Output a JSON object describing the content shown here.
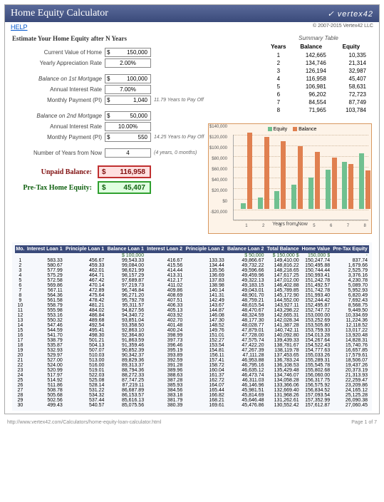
{
  "header": {
    "title": "Home Equity Calculator",
    "logo": "✓ vertex42",
    "help": "HELP",
    "copyright": "© 2007-2015 Vertex42 LLC"
  },
  "inputs": {
    "heading": "Estimate Your Home Equity after N Years",
    "current_value_lbl": "Current Value of Home",
    "current_value": "150,000",
    "appreciation_lbl": "Yearly Appreciation Rate",
    "appreciation": "2.00%",
    "m1_balance_lbl": "Balance on 1st Mortgage",
    "m1_balance": "100,000",
    "m1_rate_lbl": "Annual Interest Rate",
    "m1_rate": "7.00%",
    "m1_payment_lbl": "Monthly Payment (PI)",
    "m1_payment": "1,040",
    "m1_note": "11.79 Years to Pay Off",
    "m2_balance_lbl": "Balance on 2nd Mortgage",
    "m2_balance": "50,000",
    "m2_rate_lbl": "Annual Interest Rate",
    "m2_rate": "10.00%",
    "m2_payment_lbl": "Monthly Payment (PI)",
    "m2_payment": "550",
    "m2_note": "14.25 Years to Pay Off",
    "years_lbl": "Number of Years from Now",
    "years": "4",
    "years_note": "(4 years, 0 months)"
  },
  "results": {
    "unpaid_lbl": "Unpaid Balance:",
    "unpaid_val": "116,958",
    "equity_lbl": "Pre-Tax Home Equity:",
    "equity_val": "45,407"
  },
  "summary": {
    "title": "Summary Table",
    "cols": [
      "Years",
      "Balance",
      "Equity"
    ],
    "rows": [
      [
        "1",
        "142,665",
        "10,335"
      ],
      [
        "2",
        "134,746",
        "21,314"
      ],
      [
        "3",
        "126,194",
        "32,987"
      ],
      [
        "4",
        "116,958",
        "45,407"
      ],
      [
        "5",
        "106,981",
        "58,631"
      ],
      [
        "6",
        "96,202",
        "72,723"
      ],
      [
        "7",
        "84,554",
        "87,749"
      ],
      [
        "8",
        "71,965",
        "103,784"
      ]
    ]
  },
  "chart": {
    "legend_equity": "Equity",
    "legend_balance": "Balance",
    "equity_color": "#70c090",
    "balance_color": "#e08050",
    "bg": "#fdf3e8",
    "border": "#d89860",
    "ylabels": [
      "$140,000",
      "$120,000",
      "$100,000",
      "$80,000",
      "$60,000",
      "$40,000",
      "$20,000",
      "$0",
      "-$20,000"
    ],
    "ymax": 140000,
    "ymin": -20000,
    "xlabels": [
      "1",
      "2",
      "3",
      "4",
      "5",
      "6",
      "7",
      "8"
    ],
    "equity": [
      10335,
      21314,
      32987,
      45407,
      58631,
      72723,
      87749,
      103784
    ],
    "balance": [
      142665,
      134746,
      126194,
      116958,
      106981,
      96202,
      84554,
      71965
    ],
    "xtitle": "Years from Now"
  },
  "amort": {
    "headers": [
      "Mo.",
      "Interest Loan 1",
      "Principle Loan 1",
      "Balance Loan 1",
      "Interest Loan 2",
      "Principle Loan 2",
      "Balance Loan 2",
      "Total Balance",
      "Home Value",
      "Pre-Tax Equity"
    ],
    "init": [
      "",
      "",
      "",
      "$   100,000",
      "",
      "",
      "$   50,000",
      "$   150,000   $",
      "150,000   $",
      "-"
    ],
    "rows": [
      [
        "1",
        "583.33",
        "456.67",
        "99,543.33",
        "416.67",
        "133.33",
        "49,866.67",
        "149,410.00",
        "150,247.74",
        "837.74"
      ],
      [
        "2",
        "580.67",
        "459.33",
        "99,084.00",
        "415.56",
        "134.44",
        "49,732.22",
        "148,816.22",
        "150,495.88",
        "1,679.66"
      ],
      [
        "3",
        "577.99",
        "462.01",
        "98,621.99",
        "414.44",
        "135.56",
        "49,596.66",
        "148,218.65",
        "150,744.44",
        "2,525.79"
      ],
      [
        "4",
        "575.29",
        "464.71",
        "98,157.29",
        "413.31",
        "136.69",
        "49,459.96",
        "147,617.25",
        "150,993.41",
        "3,376.16"
      ],
      [
        "5",
        "572.58",
        "467.42",
        "97,689.87",
        "412.17",
        "137.83",
        "49,322.13",
        "147,012.00",
        "151,242.78",
        "4,230.78"
      ],
      [
        "6",
        "569.86",
        "470.14",
        "97,219.73",
        "411.02",
        "138.98",
        "49,183.15",
        "146,402.88",
        "151,492.57",
        "5,089.70"
      ],
      [
        "7",
        "567.11",
        "472.89",
        "96,746.84",
        "409.86",
        "140.14",
        "49,043.01",
        "145,789.85",
        "151,742.78",
        "5,952.93"
      ],
      [
        "8",
        "564.36",
        "475.64",
        "96,271.20",
        "408.69",
        "141.31",
        "48,901.70",
        "145,172.90",
        "151,993.40",
        "6,820.49"
      ],
      [
        "9",
        "561.58",
        "478.42",
        "95,792.78",
        "407.51",
        "142.49",
        "48,759.21",
        "144,552.00",
        "152,244.42",
        "7,692.43"
      ],
      [
        "10",
        "558.79",
        "481.21",
        "95,311.57",
        "406.33",
        "143.67",
        "48,615.54",
        "143,927.11",
        "152,495.87",
        "8,568.75"
      ],
      [
        "11",
        "555.98",
        "484.02",
        "94,827.56",
        "405.13",
        "144.87",
        "48,470.67",
        "143,298.22",
        "152,747.72",
        "9,449.50"
      ],
      [
        "12",
        "553.16",
        "486.84",
        "94,340.72",
        "403.92",
        "146.08",
        "48,324.59",
        "142,665.31",
        "153,000.00",
        "10,334.69"
      ],
      [
        "13",
        "550.32",
        "489.68",
        "93,851.04",
        "402.70",
        "147.30",
        "48,177.30",
        "142,028.34",
        "153,252.69",
        "11,224.36"
      ],
      [
        "14",
        "547.46",
        "492.54",
        "93,358.50",
        "401.48",
        "148.52",
        "48,028.77",
        "141,387.28",
        "153,505.80",
        "12,118.52"
      ],
      [
        "15",
        "544.59",
        "495.41",
        "92,863.10",
        "400.24",
        "149.76",
        "47,879.01",
        "140,742.11",
        "153,759.33",
        "13,017.22"
      ],
      [
        "16",
        "541.70",
        "498.30",
        "92,364.80",
        "398.99",
        "151.01",
        "47,728.00",
        "140,092.80",
        "154,013.28",
        "13,920.48"
      ],
      [
        "17",
        "538.79",
        "501.21",
        "91,863.59",
        "397.73",
        "152.27",
        "47,575.74",
        "139,439.33",
        "154,267.64",
        "14,828.31"
      ],
      [
        "18",
        "535.87",
        "504.13",
        "91,359.46",
        "396.46",
        "153.54",
        "47,422.20",
        "138,781.67",
        "154,522.43",
        "15,740.76"
      ],
      [
        "19",
        "532.93",
        "507.07",
        "90,852.39",
        "395.19",
        "154.81",
        "47,267.39",
        "138,119.78",
        "154,777.63",
        "16,657.85"
      ],
      [
        "20",
        "529.97",
        "510.03",
        "90,342.37",
        "393.89",
        "156.11",
        "47,111.28",
        "137,453.65",
        "155,033.26",
        "17,579.61"
      ],
      [
        "21",
        "527.00",
        "513.00",
        "89,829.36",
        "392.59",
        "157.41",
        "46,953.88",
        "136,783.24",
        "155,289.31",
        "18,506.07"
      ],
      [
        "22",
        "524.00",
        "516.00",
        "89,313.37",
        "391.28",
        "158.72",
        "46,795.16",
        "136,108.53",
        "155,545.78",
        "19,437.26"
      ],
      [
        "23",
        "520.99",
        "519.01",
        "88,794.36",
        "389.96",
        "160.04",
        "46,635.12",
        "135,429.48",
        "155,802.68",
        "20,373.19"
      ],
      [
        "24",
        "517.97",
        "522.03",
        "88,272.33",
        "388.63",
        "161.37",
        "46,473.74",
        "134,746.07",
        "156,060.00",
        "21,313.93"
      ],
      [
        "25",
        "514.92",
        "525.08",
        "87,747.25",
        "387.28",
        "162.72",
        "46,311.03",
        "134,058.28",
        "156,317.75",
        "22,259.47"
      ],
      [
        "26",
        "511.86",
        "528.14",
        "87,219.11",
        "385.93",
        "164.07",
        "46,146.96",
        "133,366.06",
        "156,575.92",
        "23,209.86"
      ],
      [
        "27",
        "508.78",
        "531.22",
        "86,687.89",
        "384.56",
        "165.44",
        "45,981.51",
        "132,669.40",
        "156,834.52",
        "24,165.12"
      ],
      [
        "28",
        "505.68",
        "534.32",
        "86,153.57",
        "383.18",
        "166.82",
        "45,814.69",
        "131,968.26",
        "157,093.54",
        "25,125.28"
      ],
      [
        "29",
        "502.56",
        "537.44",
        "85,616.13",
        "381.79",
        "168.21",
        "45,646.48",
        "131,262.61",
        "157,352.99",
        "26,090.38"
      ],
      [
        "30",
        "499.43",
        "540.57",
        "85,075.56",
        "380.39",
        "169.61",
        "45,476.86",
        "130,552.42",
        "157,612.87",
        "27,060.45"
      ]
    ]
  },
  "footer": {
    "url": "http://www.vertex42.com/Calculators/home-equity-loan-calculator.html",
    "page": "Page 1 of 7"
  }
}
